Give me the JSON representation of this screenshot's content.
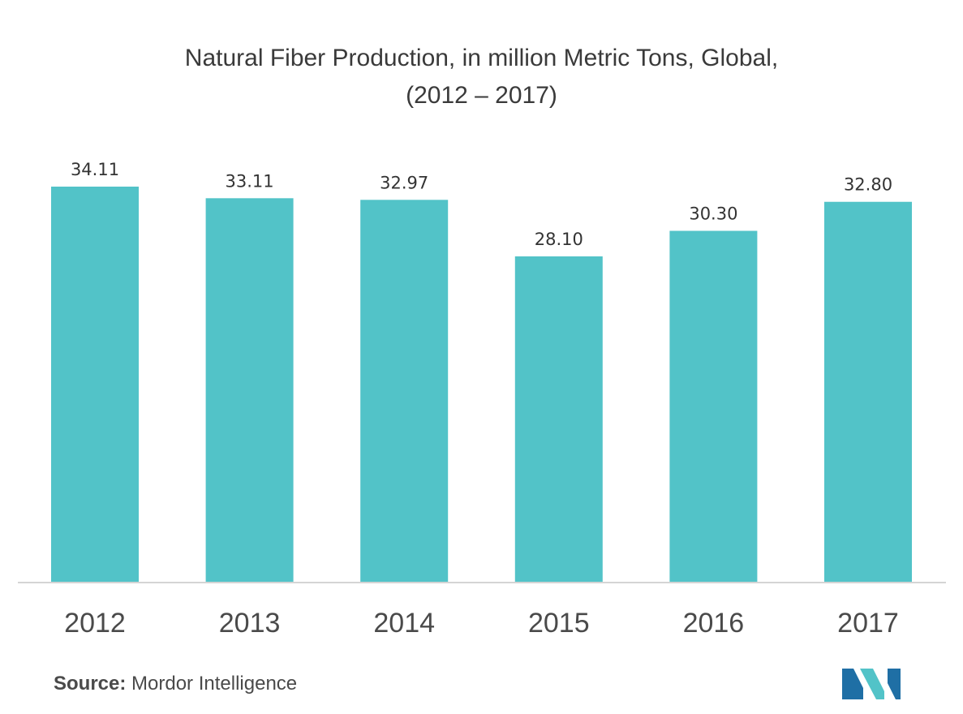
{
  "chart_data": {
    "type": "bar",
    "title_line1": "Natural Fiber Production, in million Metric Tons, Global,",
    "title_line2": "(2012 – 2017)",
    "categories": [
      "2012",
      "2013",
      "2014",
      "2015",
      "2016",
      "2017"
    ],
    "values": [
      34.11,
      33.11,
      32.97,
      28.1,
      30.3,
      32.8
    ],
    "value_labels": [
      "34.11",
      "33.11",
      "32.97",
      "28.10",
      "30.30",
      "32.80"
    ],
    "xlabel": "",
    "ylabel": "",
    "ylim": [
      0,
      34.11
    ],
    "grid": false,
    "bar_color": "#52c3c8"
  },
  "source": {
    "label": "Source:",
    "text": "Mordor Intelligence"
  },
  "logo": {
    "icon": "mordor-intelligence-logo",
    "colors": [
      "#1f6fa5",
      "#52c3c8"
    ]
  }
}
